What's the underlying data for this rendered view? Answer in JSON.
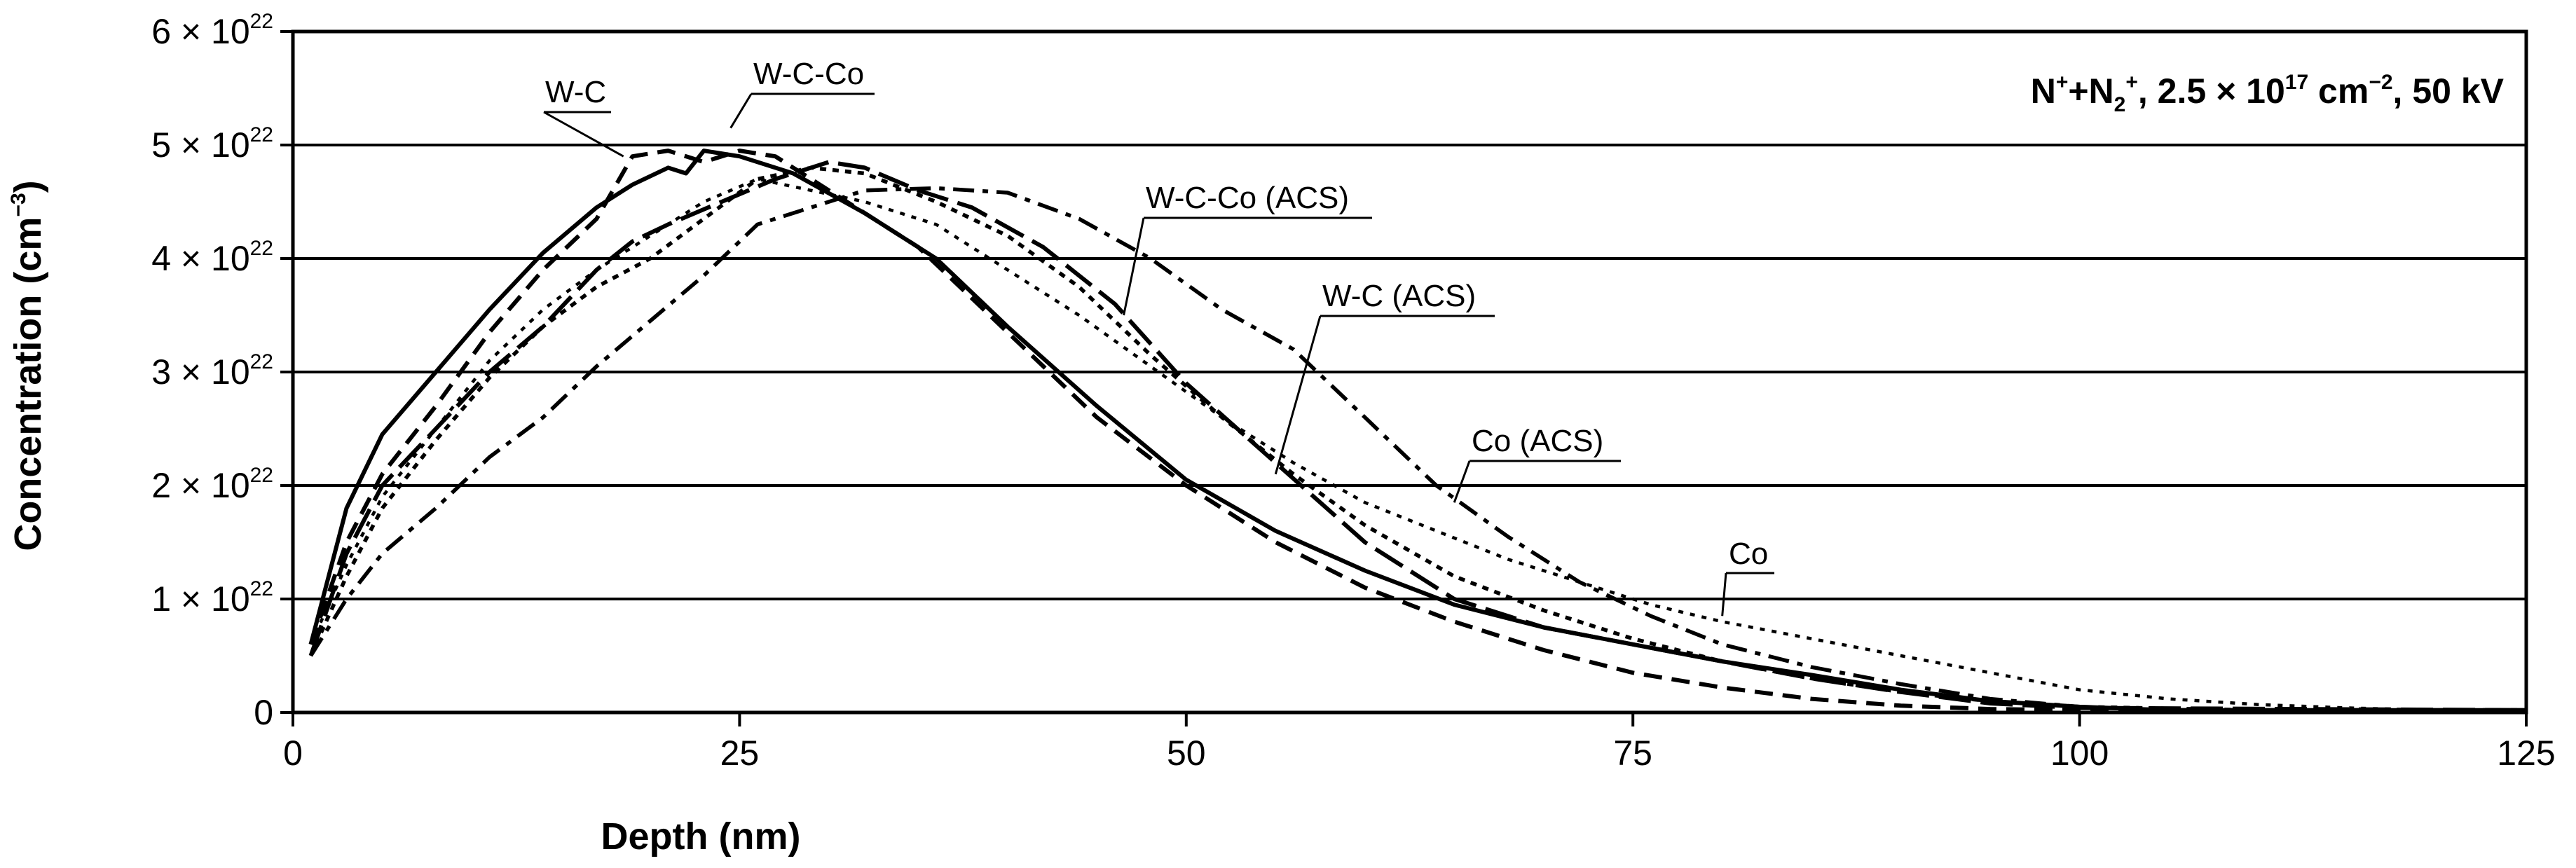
{
  "chart_data": {
    "type": "line",
    "title": "",
    "xlabel": "Depth (nm)",
    "ylabel": "Concentration (cm⁻³)",
    "ylabel_base": "Concentration (cm",
    "ylabel_exp": "−3",
    "ylabel_close": ")",
    "xlim": [
      0,
      125
    ],
    "ylim": [
      0,
      6e+22
    ],
    "grid": "horizontal",
    "xticks": [
      0,
      25,
      50,
      75,
      100,
      125
    ],
    "xtick_labels": [
      "0",
      "25",
      "50",
      "75",
      "100",
      "125"
    ],
    "yticks": [
      {
        "value": 0,
        "mantissa": "0",
        "exponent": ""
      },
      {
        "value": 1e+22,
        "mantissa": "1 × 10",
        "exponent": "22"
      },
      {
        "value": 2e+22,
        "mantissa": "2 × 10",
        "exponent": "22"
      },
      {
        "value": 3e+22,
        "mantissa": "3 × 10",
        "exponent": "22"
      },
      {
        "value": 4e+22,
        "mantissa": "4 × 10",
        "exponent": "22"
      },
      {
        "value": 5e+22,
        "mantissa": "5 × 10",
        "exponent": "22"
      },
      {
        "value": 6e+22,
        "mantissa": "6 × 10",
        "exponent": "22"
      }
    ],
    "condition": {
      "p1": "N",
      "p1_sup": "+",
      "p2": "+N",
      "p2_sub": "2",
      "p2_sup": "+",
      "p3": ", 2.5 × 10",
      "p3_sup": "17",
      "p4": " cm",
      "p4_sup": "−2",
      "p5": ", 50 kV"
    },
    "series": [
      {
        "name": "W-C",
        "style": "solid",
        "x": [
          1,
          3,
          5,
          8,
          11,
          14,
          17,
          19,
          21,
          22,
          23,
          25,
          28,
          32,
          36,
          40,
          45,
          50,
          55,
          60,
          65,
          70,
          75,
          80,
          85,
          90,
          95,
          100,
          105,
          125
        ],
        "y": [
          0.6,
          1.8,
          2.45,
          3.0,
          3.55,
          4.05,
          4.45,
          4.65,
          4.8,
          4.75,
          4.95,
          4.9,
          4.75,
          4.4,
          4.0,
          3.4,
          2.7,
          2.05,
          1.6,
          1.25,
          0.95,
          0.75,
          0.6,
          0.45,
          0.33,
          0.2,
          0.1,
          0.05,
          0.02,
          0.02
        ]
      },
      {
        "name": "W-C-Co",
        "style": "dash",
        "x": [
          1,
          3,
          5,
          8,
          11,
          14,
          17,
          19,
          21,
          23,
          25,
          27,
          29,
          32,
          35,
          40,
          45,
          50,
          55,
          60,
          65,
          70,
          75,
          80,
          85,
          90,
          95,
          100,
          110,
          125
        ],
        "y": [
          0.6,
          1.5,
          2.1,
          2.7,
          3.35,
          3.9,
          4.35,
          4.9,
          4.95,
          4.85,
          4.95,
          4.9,
          4.7,
          4.4,
          4.1,
          3.35,
          2.6,
          2.0,
          1.5,
          1.1,
          0.8,
          0.55,
          0.35,
          0.22,
          0.12,
          0.06,
          0.03,
          0.02,
          0.02,
          0.02
        ]
      },
      {
        "name": "W-C-Co (ACS)",
        "style": "longdash",
        "x": [
          1,
          3,
          5,
          8,
          11,
          14,
          17,
          19,
          21,
          24,
          27,
          30,
          32,
          35,
          38,
          42,
          46,
          50,
          55,
          60,
          65,
          70,
          75,
          80,
          85,
          90,
          95,
          100,
          125
        ],
        "y": [
          0.5,
          1.4,
          2.0,
          2.5,
          3.0,
          3.4,
          3.9,
          4.15,
          4.3,
          4.5,
          4.7,
          4.85,
          4.8,
          4.6,
          4.45,
          4.1,
          3.6,
          2.9,
          2.2,
          1.5,
          1.0,
          0.75,
          0.6,
          0.45,
          0.3,
          0.18,
          0.08,
          0.04,
          0.02
        ]
      },
      {
        "name": "W-C (ACS)",
        "style": "dot",
        "x": [
          1,
          3,
          5,
          8,
          11,
          14,
          17,
          20,
          23,
          26,
          29,
          32,
          36,
          40,
          44,
          48,
          52,
          56,
          60,
          65,
          70,
          75,
          80,
          85,
          90,
          95,
          100,
          110,
          125
        ],
        "y": [
          0.5,
          1.2,
          1.8,
          2.4,
          2.95,
          3.4,
          3.75,
          4.0,
          4.35,
          4.7,
          4.8,
          4.75,
          4.5,
          4.2,
          3.75,
          3.15,
          2.6,
          2.1,
          1.65,
          1.2,
          0.9,
          0.65,
          0.45,
          0.3,
          0.18,
          0.1,
          0.05,
          0.02,
          0.02
        ]
      },
      {
        "name": "Co (ACS)",
        "style": "dashdot",
        "x": [
          1,
          3,
          5,
          8,
          11,
          14,
          17,
          20,
          23,
          26,
          29,
          32,
          36,
          40,
          44,
          48,
          52,
          56,
          60,
          64,
          68,
          72,
          76,
          80,
          85,
          90,
          95,
          100,
          105,
          125
        ],
        "y": [
          0.5,
          1.0,
          1.4,
          1.8,
          2.25,
          2.6,
          3.05,
          3.45,
          3.85,
          4.3,
          4.45,
          4.6,
          4.62,
          4.58,
          4.35,
          4.0,
          3.55,
          3.2,
          2.6,
          2.0,
          1.55,
          1.15,
          0.85,
          0.6,
          0.4,
          0.25,
          0.12,
          0.05,
          0.02,
          0.02
        ]
      },
      {
        "name": "Co",
        "style": "smalldot",
        "x": [
          1,
          3,
          5,
          8,
          11,
          14,
          17,
          20,
          23,
          26,
          29,
          32,
          36,
          40,
          44,
          48,
          52,
          56,
          60,
          64,
          68,
          72,
          76,
          80,
          85,
          90,
          95,
          100,
          105,
          110,
          115,
          120,
          125
        ],
        "y": [
          0.6,
          1.3,
          1.9,
          2.5,
          3.1,
          3.55,
          3.9,
          4.2,
          4.5,
          4.7,
          4.6,
          4.5,
          4.3,
          3.9,
          3.5,
          3.05,
          2.6,
          2.2,
          1.85,
          1.6,
          1.35,
          1.15,
          0.95,
          0.8,
          0.65,
          0.5,
          0.35,
          0.2,
          0.12,
          0.07,
          0.04,
          0.02,
          0.02
        ]
      }
    ],
    "annotations": [
      {
        "label": "W-C",
        "points_to": [
          18.5,
          4.9
        ]
      },
      {
        "label": "W-C-Co",
        "points_to": [
          24.5,
          5.15
        ]
      },
      {
        "label": "W-C-Co (ACS)",
        "points_to": [
          46.5,
          3.5
        ]
      },
      {
        "label": "W-C (ACS)",
        "points_to": [
          55,
          2.1
        ]
      },
      {
        "label": "Co (ACS)",
        "points_to": [
          65,
          1.85
        ]
      },
      {
        "label": "Co",
        "points_to": [
          80,
          0.85
        ]
      }
    ]
  }
}
